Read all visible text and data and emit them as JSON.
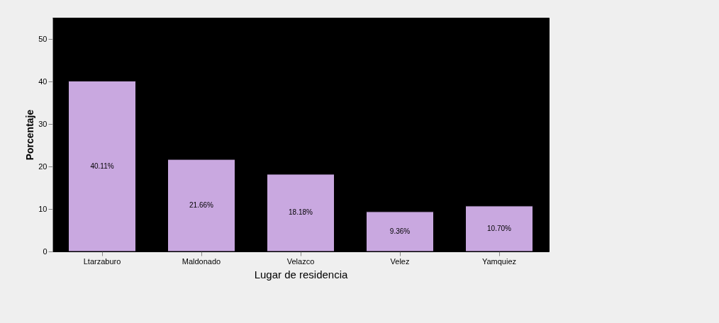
{
  "chart_data": {
    "type": "bar",
    "xlabel": "Lugar de residencia",
    "ylabel": "Porcentaje",
    "categories": [
      "Ltarzaburo",
      "Maldonado",
      "Velazco",
      "Velez",
      "Yamquiez"
    ],
    "values": [
      40.11,
      21.66,
      18.18,
      9.36,
      10.7
    ],
    "value_labels": [
      "40.11%",
      "21.66%",
      "18.18%",
      "9.36%",
      "10.70%"
    ],
    "color": "#c9a8e0",
    "ylim": [
      0,
      55
    ],
    "yticks": [
      0,
      10,
      20,
      30,
      40,
      50
    ],
    "grid": false
  }
}
